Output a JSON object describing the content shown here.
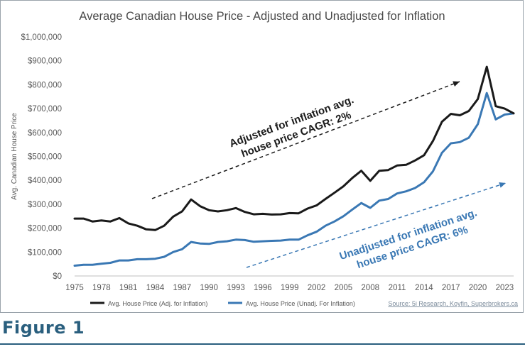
{
  "figure_label": "Figure 1",
  "chart_data": {
    "type": "line",
    "title": "Average Canadian House Price - Adjusted and Unadjusted for Inflation",
    "ylabel": "Avg. Canadian House Price",
    "xlabel": "",
    "ylim": [
      0,
      1000000
    ],
    "xlim": [
      1975,
      2024
    ],
    "grid": false,
    "x_ticks": [
      "1975",
      "1978",
      "1981",
      "1984",
      "1987",
      "1990",
      "1993",
      "1996",
      "1999",
      "2002",
      "2005",
      "2008",
      "2011",
      "2014",
      "2017",
      "2020",
      "2023"
    ],
    "y_ticks": [
      "$0",
      "$100,000",
      "$200,000",
      "$300,000",
      "$400,000",
      "$500,000",
      "$600,000",
      "$700,000",
      "$800,000",
      "$900,000",
      "$1,000,000"
    ],
    "x": [
      1975,
      1976,
      1977,
      1978,
      1979,
      1980,
      1981,
      1982,
      1983,
      1984,
      1985,
      1986,
      1987,
      1988,
      1989,
      1990,
      1991,
      1992,
      1993,
      1994,
      1995,
      1996,
      1997,
      1998,
      1999,
      2000,
      2001,
      2002,
      2003,
      2004,
      2005,
      2006,
      2007,
      2008,
      2009,
      2010,
      2011,
      2012,
      2013,
      2014,
      2015,
      2016,
      2017,
      2018,
      2019,
      2020,
      2021,
      2022,
      2023,
      2024
    ],
    "series": [
      {
        "name": "Avg. House Price (Adj. for Inflation)",
        "color": "#1a1a1a",
        "values": [
          240000,
          240000,
          228000,
          232000,
          228000,
          242000,
          220000,
          210000,
          195000,
          192000,
          210000,
          248000,
          270000,
          320000,
          292000,
          275000,
          270000,
          275000,
          284000,
          268000,
          258000,
          260000,
          257000,
          258000,
          263000,
          262000,
          282000,
          295000,
          322000,
          348000,
          375000,
          410000,
          440000,
          398000,
          440000,
          443000,
          462000,
          465000,
          483000,
          505000,
          565000,
          645000,
          678000,
          672000,
          690000,
          740000,
          875000,
          710000,
          700000,
          680000
        ]
      },
      {
        "name": "Avg. House Price (Unadj. For Inflation)",
        "color": "#3a78b4",
        "values": [
          43000,
          47000,
          47000,
          51000,
          55000,
          65000,
          65000,
          70000,
          70000,
          72000,
          80000,
          100000,
          112000,
          142000,
          136000,
          134000,
          142000,
          145000,
          152000,
          150000,
          143000,
          145000,
          147000,
          148000,
          152000,
          152000,
          170000,
          185000,
          210000,
          228000,
          250000,
          278000,
          305000,
          285000,
          315000,
          322000,
          345000,
          354000,
          368000,
          392000,
          438000,
          515000,
          555000,
          560000,
          578000,
          635000,
          765000,
          655000,
          675000,
          680000
        ]
      }
    ],
    "annotations": [
      {
        "text_lines": [
          "Adjusted for inflation avg.",
          "house price CAGR: 2%"
        ],
        "color": "#1a1a1a"
      },
      {
        "text_lines": [
          "Unadjusted for inflation avg.",
          "house price CAGR: 6%"
        ],
        "color": "#3a78b4"
      }
    ],
    "source_text": "Source: 5i Research, Koyfin, Superbrokers.ca",
    "legend_placement": "bottom-left"
  }
}
